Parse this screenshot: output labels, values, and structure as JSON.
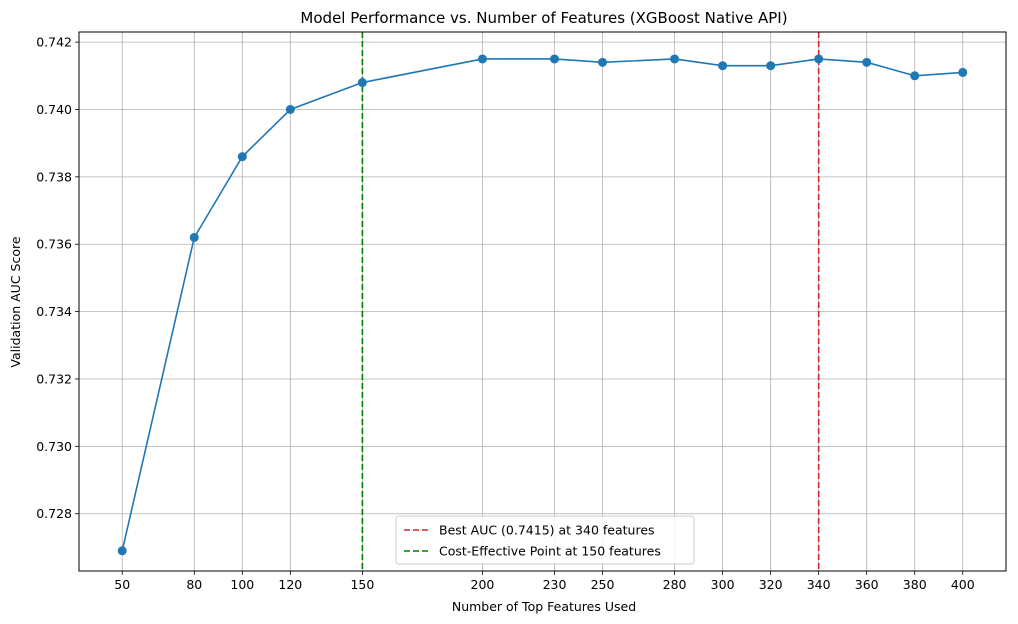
{
  "chart_data": {
    "type": "line",
    "title": "Model Performance vs. Number of Features (XGBoost Native API)",
    "xlabel": "Number of Top Features Used",
    "ylabel": "Validation AUC Score",
    "x": [
      50,
      80,
      100,
      120,
      150,
      200,
      230,
      250,
      280,
      300,
      320,
      340,
      360,
      380,
      400
    ],
    "x_ticks": [
      50,
      80,
      100,
      120,
      150,
      200,
      230,
      250,
      280,
      300,
      320,
      340,
      360,
      380,
      400
    ],
    "xlim": [
      32,
      418
    ],
    "ylim": [
      0.7263,
      0.7423
    ],
    "y_ticks": [
      0.728,
      0.73,
      0.732,
      0.734,
      0.736,
      0.738,
      0.74,
      0.742
    ],
    "y_tick_labels": [
      "0.728",
      "0.730",
      "0.732",
      "0.734",
      "0.736",
      "0.738",
      "0.740",
      "0.742"
    ],
    "series": [
      {
        "color": "#1f77b4",
        "marker": "circle",
        "values": [
          0.7269,
          0.7362,
          0.7386,
          0.74,
          0.7408,
          0.7415,
          0.7415,
          0.7414,
          0.7415,
          0.7413,
          0.7413,
          0.7415,
          0.7414,
          0.741,
          0.7411
        ]
      }
    ],
    "vlines": [
      {
        "x": 340,
        "color": "#d62728",
        "style": "dashed",
        "label": "Best AUC (0.7415) at 340 features"
      },
      {
        "x": 150,
        "color": "#008000",
        "style": "dashed",
        "label": "Cost-Effective Point at 150 features"
      }
    ],
    "grid": true,
    "legend_position": "lower center"
  }
}
